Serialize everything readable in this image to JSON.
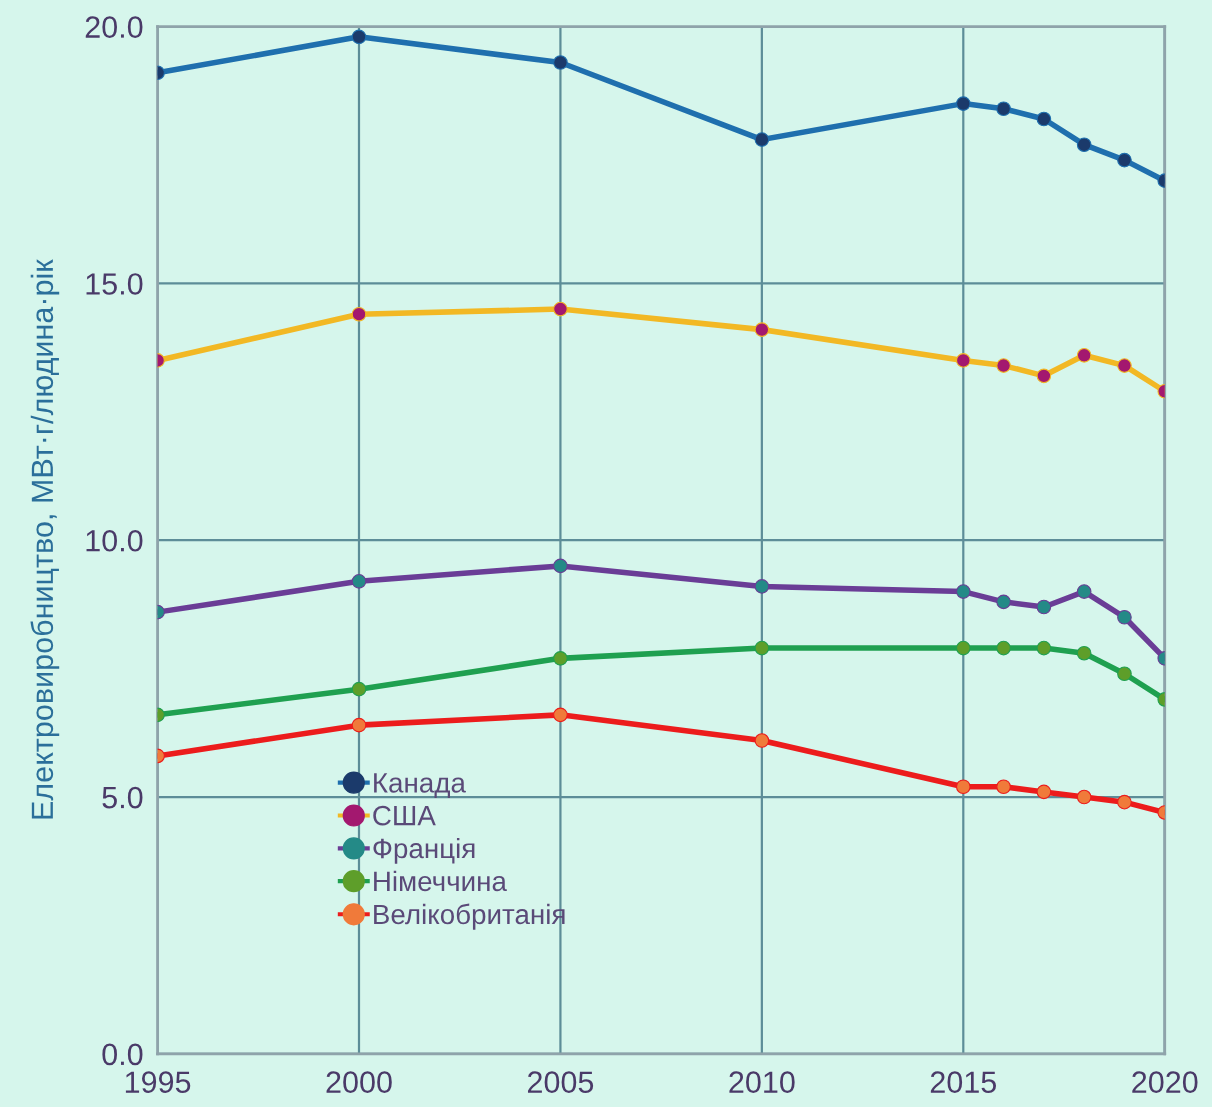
{
  "chart_data": {
    "type": "line",
    "ylabel": "Електровиробництво, МВт·г/людина·рік",
    "x": [
      1995,
      2000,
      2005,
      2010,
      2015,
      2016,
      2017,
      2018,
      2019,
      2020
    ],
    "xlim": [
      1995,
      2020
    ],
    "xticks": [
      1995,
      2000,
      2005,
      2010,
      2015,
      2020
    ],
    "ylim": [
      0,
      20
    ],
    "yticks": [
      {
        "value": 0,
        "label": "0.0"
      },
      {
        "value": 5,
        "label": "5.0"
      },
      {
        "value": 10,
        "label": "10.0"
      },
      {
        "value": 15,
        "label": "15.0"
      },
      {
        "value": 20,
        "label": "20.0"
      }
    ],
    "grid": true,
    "legend": "lower left",
    "marker": "circle",
    "line_style": "solid",
    "series": [
      {
        "name": "Канада",
        "color": "#1f6fae",
        "colors": [
          "#1b3a6b",
          "#1b3a6b",
          "#1b3a6b",
          "#1b3a6b",
          "#1b3a6b",
          "#1b3a6b",
          "#1b3a6b",
          "#1b3a6b",
          "#1b3a6b",
          "#1b3a6b"
        ],
        "values": [
          19.1,
          19.8,
          19.3,
          17.8,
          18.5,
          18.4,
          18.2,
          17.7,
          17.4,
          17.0
        ]
      },
      {
        "name": "США",
        "color": "#f2b824",
        "colors": [
          "#a3186f",
          "#a3186f",
          "#a3186f",
          "#a3186f",
          "#a3186f",
          "#a3186f",
          "#a3186f",
          "#a3186f",
          "#a3186f",
          "#a3186f"
        ],
        "values": [
          13.5,
          14.4,
          14.5,
          14.1,
          13.5,
          13.4,
          13.2,
          13.6,
          13.4,
          12.9
        ]
      },
      {
        "name": "Франція",
        "color": "#6a3d96",
        "colors": [
          "#248a87",
          "#248a87",
          "#248a87",
          "#248a87",
          "#248a87",
          "#248a87",
          "#248a87",
          "#248a87",
          "#248a87",
          "#248a87"
        ],
        "values": [
          8.6,
          9.2,
          9.5,
          9.1,
          9.0,
          8.8,
          8.7,
          9.0,
          8.5,
          7.7
        ]
      },
      {
        "name": "Німеччина",
        "color": "#1fa050",
        "colors": [
          "#5e9e2a",
          "#5e9e2a",
          "#5e9e2a",
          "#5e9e2a",
          "#5e9e2a",
          "#5e9e2a",
          "#5e9e2a",
          "#5e9e2a",
          "#5e9e2a",
          "#5e9e2a"
        ],
        "values": [
          6.6,
          7.1,
          7.7,
          7.9,
          7.9,
          7.9,
          7.9,
          7.8,
          7.4,
          6.9
        ]
      },
      {
        "name": "Велікобританія",
        "color": "#ec1c1c",
        "colors": [
          "#f07a3a",
          "#f07a3a",
          "#f07a3a",
          "#f07a3a",
          "#f07a3a",
          "#f07a3a",
          "#f07a3a",
          "#f07a3a",
          "#f07a3a",
          "#f07a3a"
        ],
        "values": [
          5.8,
          6.4,
          6.6,
          6.1,
          5.2,
          5.2,
          5.1,
          5.0,
          4.9,
          4.7
        ]
      }
    ]
  }
}
